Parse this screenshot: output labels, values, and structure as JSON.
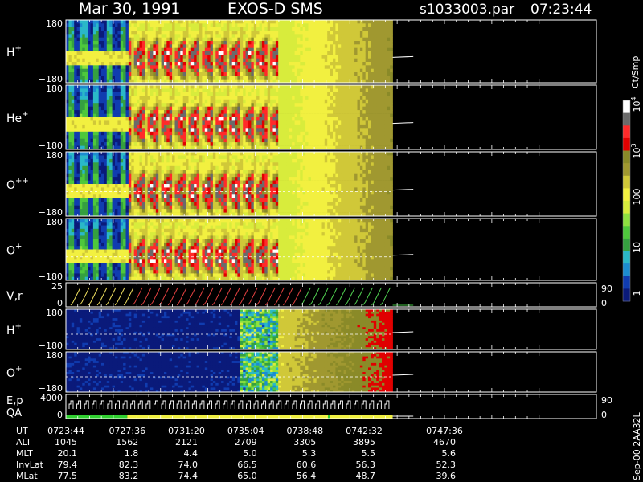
{
  "header": {
    "date": "Mar 30, 1991",
    "instrument": "EXOS-D SMS",
    "file": "s1033003.par",
    "time": "07:23:44"
  },
  "colorbar": {
    "unit": "Ct/Smp",
    "tick_labels": [
      "1",
      "10",
      "100",
      "10",
      "10"
    ],
    "exponents": [
      "",
      "",
      "",
      "3",
      "4"
    ],
    "levels": [
      1,
      10,
      100,
      1000,
      10000
    ],
    "scale": "log"
  },
  "chart_data": [
    {
      "type": "heatmap",
      "panel": "H+",
      "label": "H",
      "sup": "+",
      "ylim": [
        -180,
        180
      ],
      "ytick_labels": [
        "180",
        "−180"
      ],
      "profile": {
        "phase1_end": "0727:36",
        "cutoff": "0737:10",
        "data_end": "0744:20",
        "trace_end": "0745:38"
      }
    },
    {
      "type": "heatmap",
      "panel": "He+",
      "label": "He",
      "sup": "+",
      "ylim": [
        -180,
        180
      ],
      "ytick_labels": [
        "180",
        "−180"
      ]
    },
    {
      "type": "heatmap",
      "panel": "O++",
      "label": "O",
      "sup": "++",
      "ylim": [
        -180,
        180
      ],
      "ytick_labels": [
        "180",
        "−180"
      ]
    },
    {
      "type": "heatmap",
      "panel": "O+",
      "label": "O",
      "sup": "+",
      "ylim": [
        -180,
        180
      ],
      "ytick_labels": [
        "180",
        "−180"
      ]
    },
    {
      "type": "line",
      "panel": "V,r",
      "label": "V,r",
      "ylim": [
        0,
        25
      ],
      "ytick_labels": [
        "25",
        "0"
      ],
      "right_ticks": [
        "90",
        "0"
      ],
      "series_colors": [
        "#f0e060",
        "#e04040",
        "#50d050"
      ]
    },
    {
      "type": "heatmap",
      "panel": "H+ (lower)",
      "label": "H",
      "sup": "+",
      "ylim": [
        -180,
        180
      ],
      "ytick_labels": [
        "180",
        "−180"
      ]
    },
    {
      "type": "heatmap",
      "panel": "O+ (lower)",
      "label": "O",
      "sup": "+",
      "ylim": [
        -180,
        180
      ],
      "ytick_labels": [
        "180",
        "−180"
      ]
    },
    {
      "type": "line",
      "panel": "E,p QA",
      "label": [
        "E,p",
        "QA"
      ],
      "ylim": [
        0,
        4000
      ],
      "ytick_labels": [
        "4000",
        "0"
      ],
      "right_ticks": [
        "90",
        "0"
      ],
      "qa_colors": [
        "#30d030",
        "#f0f040"
      ]
    }
  ],
  "table": {
    "rows": [
      {
        "label": "UT",
        "values": [
          "0723:44",
          "0727:36",
          "0731:20",
          "0735:04",
          "0738:48",
          "0742:32",
          "0747:36"
        ]
      },
      {
        "label": "ALT",
        "values": [
          "1045",
          "1562",
          "2121",
          "2709",
          "3305",
          "3895",
          "4670"
        ]
      },
      {
        "label": "MLT",
        "values": [
          "20.1",
          "1.8",
          "4.4",
          "5.0",
          "5.3",
          "5.5",
          "5.6"
        ]
      },
      {
        "label": "InvLat",
        "values": [
          "79.4",
          "82.3",
          "74.0",
          "66.5",
          "60.6",
          "56.3",
          "52.3"
        ]
      },
      {
        "label": "MLat",
        "values": [
          "77.5",
          "83.2",
          "74.4",
          "65.0",
          "56.4",
          "48.7",
          "39.6"
        ]
      }
    ]
  },
  "footer": {
    "stamp": "Sep-00 2AA32L"
  }
}
